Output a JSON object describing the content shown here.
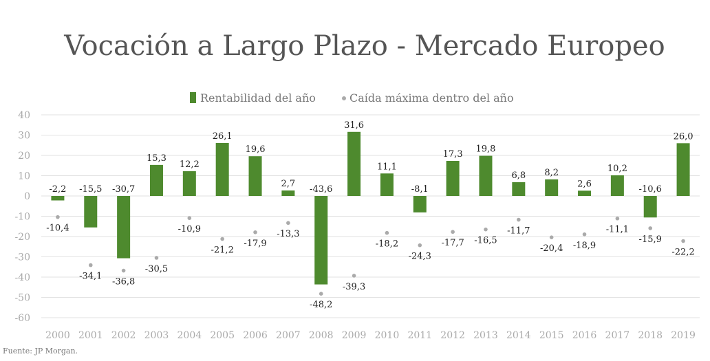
{
  "chart_data": {
    "type": "bar",
    "title": "Vocación a Largo Plazo - Mercado Europeo",
    "source": "Fuente: JP Morgan.",
    "categories": [
      "2000",
      "2001",
      "2002",
      "2003",
      "2004",
      "2005",
      "2006",
      "2007",
      "2008",
      "2009",
      "2010",
      "2011",
      "2012",
      "2013",
      "2014",
      "2015",
      "2016",
      "2017",
      "2018",
      "2019"
    ],
    "series": [
      {
        "name": "Rentabilidad del año",
        "kind": "bar",
        "color": "#4e8a2e",
        "values": [
          -2.2,
          -15.5,
          -30.7,
          15.3,
          12.2,
          26.1,
          19.6,
          2.7,
          -43.6,
          31.6,
          11.1,
          -8.1,
          17.3,
          19.8,
          6.8,
          8.2,
          2.6,
          10.2,
          -10.6,
          26.0
        ],
        "labels": [
          "-2,2",
          "-15,5",
          "-30,7",
          "15,3",
          "12,2",
          "26,1",
          "19,6",
          "2,7",
          "-43,6",
          "31,6",
          "11,1",
          "-8,1",
          "17,3",
          "19,8",
          "6,8",
          "8,2",
          "2,6",
          "10,2",
          "-10,6",
          "26,0"
        ]
      },
      {
        "name": "Caída máxima dentro del año",
        "kind": "scatter",
        "color": "#aaaaaa",
        "values": [
          -10.4,
          -34.1,
          -36.8,
          -30.5,
          -10.9,
          -21.2,
          -17.9,
          -13.3,
          -48.2,
          -39.3,
          -18.2,
          -24.3,
          -17.7,
          -16.5,
          -11.7,
          -20.4,
          -18.9,
          -11.1,
          -15.9,
          -22.2
        ],
        "labels": [
          "-10,4",
          "-34,1",
          "-36,8",
          "-30,5",
          "-10,9",
          "-21,2",
          "-17,9",
          "-13,3",
          "-48,2",
          "-39,3",
          "-18,2",
          "-24,3",
          "-17,7",
          "-16,5",
          "-11,7",
          "-20,4",
          "-18,9",
          "-11,1",
          "-15,9",
          "-22,2"
        ]
      }
    ],
    "ylim": [
      -60,
      40
    ],
    "yticks": [
      "40",
      "30",
      "20",
      "10",
      "0",
      "-10",
      "-20",
      "-30",
      "-40",
      "-50",
      "-60"
    ],
    "grid": true,
    "legend_position": "top"
  }
}
